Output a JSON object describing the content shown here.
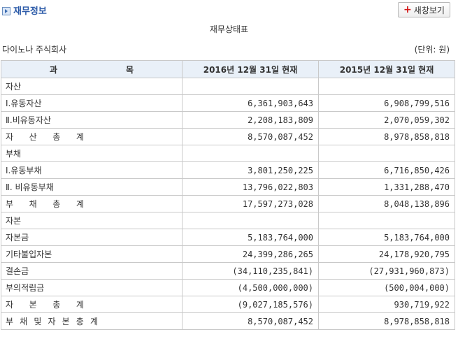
{
  "header": {
    "title": "재무정보",
    "new_window_label": "새창보기"
  },
  "document": {
    "title": "재무상태표",
    "company": "다이노나 주식회사",
    "unit": "(단위: 원)"
  },
  "table": {
    "headers": {
      "account": "과목",
      "account_chars": [
        "과",
        "목"
      ],
      "year1": "2016년  12월 31일 현재",
      "year2": "2015년  12월 31일 현재"
    },
    "rows": [
      {
        "label": "자산",
        "spread": false,
        "v1": "",
        "v2": ""
      },
      {
        "label": "Ⅰ.유동자산",
        "spread": false,
        "v1": "6,361,903,643",
        "v2": "6,908,799,516"
      },
      {
        "label": "Ⅱ.비유동자산",
        "spread": false,
        "v1": "2,208,183,809",
        "v2": "2,070,059,302"
      },
      {
        "label": "자산총계",
        "spread": true,
        "chars": [
          "자",
          "산",
          "총",
          "계"
        ],
        "v1": "8,570,087,452",
        "v2": "8,978,858,818"
      },
      {
        "label": "부채",
        "spread": false,
        "v1": "",
        "v2": ""
      },
      {
        "label": "Ⅰ.유동부채",
        "spread": false,
        "v1": "3,801,250,225",
        "v2": "6,716,850,426"
      },
      {
        "label": "Ⅱ. 비유동부채",
        "spread": false,
        "v1": "13,796,022,803",
        "v2": "1,331,288,470"
      },
      {
        "label": "부채총계",
        "spread": true,
        "chars": [
          "부",
          "채",
          "총",
          "계"
        ],
        "v1": "17,597,273,028",
        "v2": "8,048,138,896"
      },
      {
        "label": "자본",
        "spread": false,
        "v1": "",
        "v2": ""
      },
      {
        "label": "자본금",
        "spread": false,
        "v1": "5,183,764,000",
        "v2": "5,183,764,000"
      },
      {
        "label": "기타불입자본",
        "spread": false,
        "v1": "24,399,286,265",
        "v2": "24,178,920,795"
      },
      {
        "label": "결손금",
        "spread": false,
        "v1": "(34,110,235,841)",
        "v2": "(27,931,960,873)"
      },
      {
        "label": "부의적립금",
        "spread": false,
        "v1": "(4,500,000,000)",
        "v2": "(500,004,000)"
      },
      {
        "label": "자본총계",
        "spread": true,
        "chars": [
          "자",
          "본",
          "총",
          "계"
        ],
        "v1": "(9,027,185,576)",
        "v2": "930,719,922"
      },
      {
        "label": "부채 및 자본총계",
        "spread": true,
        "chars": [
          "부",
          "채",
          "및",
          "자",
          "본",
          "총",
          "계"
        ],
        "v1": "8,570,087,452",
        "v2": "8,978,858,818"
      }
    ]
  }
}
